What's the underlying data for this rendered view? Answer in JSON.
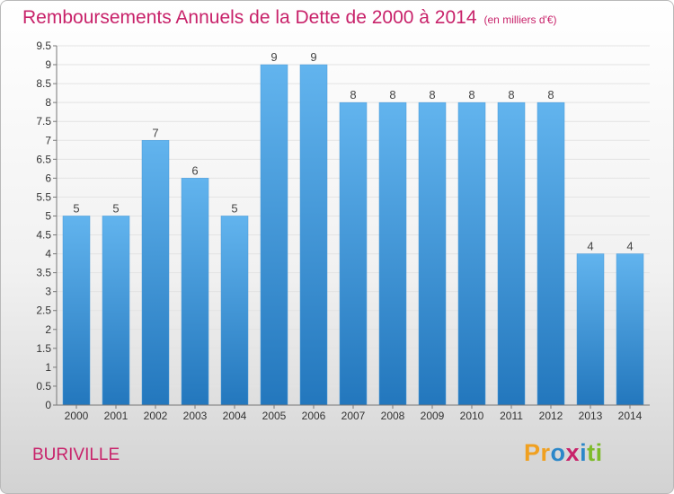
{
  "chart_data": {
    "type": "bar",
    "title": "Remboursements Annuels de la Dette de 2000 à 2014",
    "unit_label": "(en milliers d'€)",
    "categories": [
      "2000",
      "2001",
      "2002",
      "2003",
      "2004",
      "2005",
      "2006",
      "2007",
      "2008",
      "2009",
      "2010",
      "2011",
      "2012",
      "2013",
      "2014"
    ],
    "values": [
      5,
      5,
      7,
      6,
      5,
      9,
      9,
      8,
      8,
      8,
      8,
      8,
      8,
      4,
      4
    ],
    "value_labels": [
      "5",
      "5",
      "7",
      "6",
      "5",
      "9",
      "9",
      "8",
      "8",
      "8",
      "8",
      "8",
      "8",
      "4",
      "4"
    ],
    "y_ticks": [
      "0",
      "0.5",
      "1",
      "1.5",
      "2",
      "2.5",
      "3",
      "3.5",
      "4",
      "4.5",
      "5",
      "5.5",
      "6",
      "6.5",
      "7",
      "7.5",
      "8",
      "8.5",
      "9",
      "9.5"
    ],
    "ylim": [
      0,
      9.5
    ],
    "grid": true,
    "xlabel": "",
    "ylabel": ""
  },
  "footer": {
    "commune": "BURIVILLE",
    "logo_letters": [
      "P",
      "r",
      "o",
      "x",
      "i",
      "t",
      "i"
    ]
  },
  "colors": {
    "title": "#c8226a",
    "bar_top": "#62b4ee",
    "bar_bottom": "#2377bd",
    "logo": [
      "#f0a020",
      "#f0a020",
      "#2b87c9",
      "#c8226a",
      "#2b87c9",
      "#7dbb2a",
      "#7dbb2a"
    ]
  }
}
